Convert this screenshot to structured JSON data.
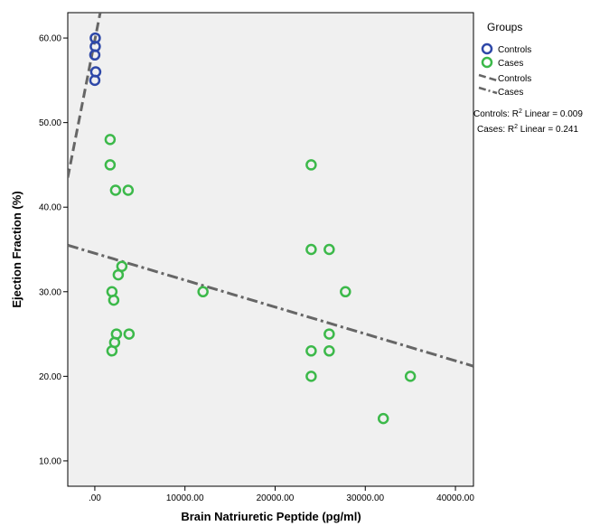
{
  "chart_data": {
    "type": "scatter",
    "xlabel": "Brain Natriuretic Peptide (pg/ml)",
    "ylabel": "Ejection Fraction (%)",
    "xlim": [
      -3000,
      42000
    ],
    "ylim": [
      7,
      63
    ],
    "xticks": [
      0,
      10000,
      20000,
      30000,
      40000
    ],
    "xtick_labels": [
      ".00",
      "10000.00",
      "20000.00",
      "30000.00",
      "40000.00"
    ],
    "yticks": [
      10,
      20,
      30,
      40,
      50,
      60
    ],
    "ytick_labels": [
      "10.00",
      "20.00",
      "30.00",
      "40.00",
      "50.00",
      "60.00"
    ],
    "grid": false,
    "background": "#f0f0f0",
    "legend": {
      "title": "Groups",
      "position": "right",
      "entries": [
        {
          "label": "Controls",
          "kind": "marker",
          "color": "#2e48a8"
        },
        {
          "label": "Cases",
          "kind": "marker",
          "color": "#3cb94a"
        },
        {
          "label": "Controls",
          "kind": "line",
          "color": "#666666",
          "dash": "dashed"
        },
        {
          "label": "Cases",
          "kind": "line",
          "color": "#666666",
          "dash": "dashdot"
        }
      ],
      "r2": [
        {
          "group": "Controls",
          "label": "Controls: R",
          "linear": " Linear = 0.009"
        },
        {
          "group": "Cases",
          "label": "Cases: R",
          "linear": " Linear = 0.241"
        }
      ]
    },
    "series": [
      {
        "name": "Controls",
        "color": "#2e48a8",
        "points": [
          {
            "x": 50,
            "y": 60
          },
          {
            "x": 50,
            "y": 59
          },
          {
            "x": 0,
            "y": 58
          },
          {
            "x": 100,
            "y": 56
          },
          {
            "x": 0,
            "y": 55
          }
        ]
      },
      {
        "name": "Cases",
        "color": "#3cb94a",
        "points": [
          {
            "x": 1700,
            "y": 48
          },
          {
            "x": 1700,
            "y": 45
          },
          {
            "x": 2300,
            "y": 42
          },
          {
            "x": 3700,
            "y": 42
          },
          {
            "x": 3000,
            "y": 33
          },
          {
            "x": 2600,
            "y": 32
          },
          {
            "x": 1900,
            "y": 30
          },
          {
            "x": 2100,
            "y": 29
          },
          {
            "x": 2400,
            "y": 25
          },
          {
            "x": 3800,
            "y": 25
          },
          {
            "x": 2200,
            "y": 24
          },
          {
            "x": 1900,
            "y": 23
          },
          {
            "x": 12000,
            "y": 30
          },
          {
            "x": 24000,
            "y": 45
          },
          {
            "x": 24000,
            "y": 35
          },
          {
            "x": 26000,
            "y": 35
          },
          {
            "x": 27800,
            "y": 30
          },
          {
            "x": 26000,
            "y": 25
          },
          {
            "x": 24000,
            "y": 23
          },
          {
            "x": 26000,
            "y": 23
          },
          {
            "x": 24000,
            "y": 20
          },
          {
            "x": 35000,
            "y": 20
          },
          {
            "x": 32000,
            "y": 15
          }
        ]
      }
    ],
    "fit_lines": [
      {
        "name": "Controls",
        "dash": "dashed",
        "x": [
          -3000,
          600
        ],
        "y": [
          43.5,
          63
        ]
      },
      {
        "name": "Cases",
        "dash": "dashdot",
        "x": [
          -3000,
          42000
        ],
        "y": [
          35.5,
          21.2
        ]
      }
    ]
  }
}
